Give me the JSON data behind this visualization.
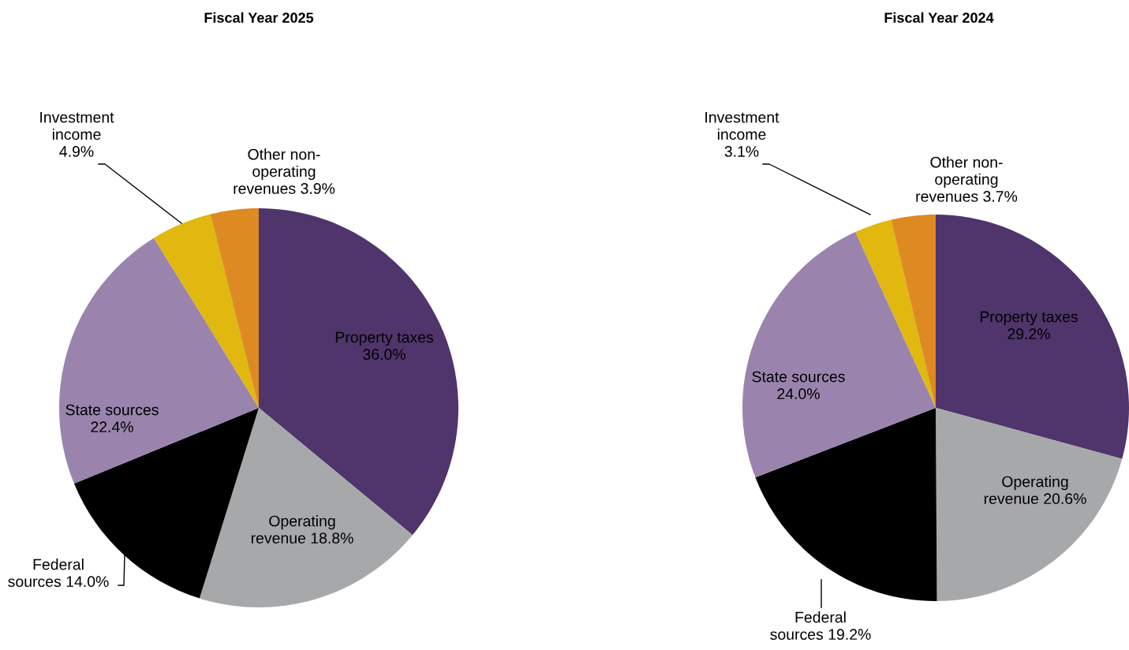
{
  "chart_data": [
    {
      "type": "pie",
      "title": "Fiscal Year 2025",
      "categories": [
        "Property taxes",
        "Operating revenue",
        "Federal sources",
        "State sources",
        "Investment income",
        "Other non-operating revenues"
      ],
      "values": [
        36.0,
        18.8,
        14.0,
        22.4,
        4.9,
        3.9
      ],
      "value_labels": [
        "36.0%",
        "18.8%",
        "14.0%",
        "22.4%",
        "4.9%",
        "3.9%"
      ],
      "colors": [
        "#4f356b",
        "#a7a8aa",
        "#000000",
        "#9a84ae",
        "#e0b80f",
        "#de8a22"
      ],
      "legend": false
    },
    {
      "type": "pie",
      "title": "Fiscal Year 2024",
      "categories": [
        "Property taxes",
        "Operating revenue",
        "Federal sources",
        "State sources",
        "Investment income",
        "Other non-operating revenues"
      ],
      "values": [
        29.2,
        20.6,
        19.2,
        24.0,
        3.1,
        3.7
      ],
      "value_labels": [
        "29.2%",
        "20.6%",
        "19.2%",
        "24.0%",
        "3.1%",
        "3.7%"
      ],
      "colors": [
        "#4f356b",
        "#a7a8aa",
        "#000000",
        "#9a84ae",
        "#e0b80f",
        "#de8a22"
      ],
      "legend": false
    }
  ]
}
